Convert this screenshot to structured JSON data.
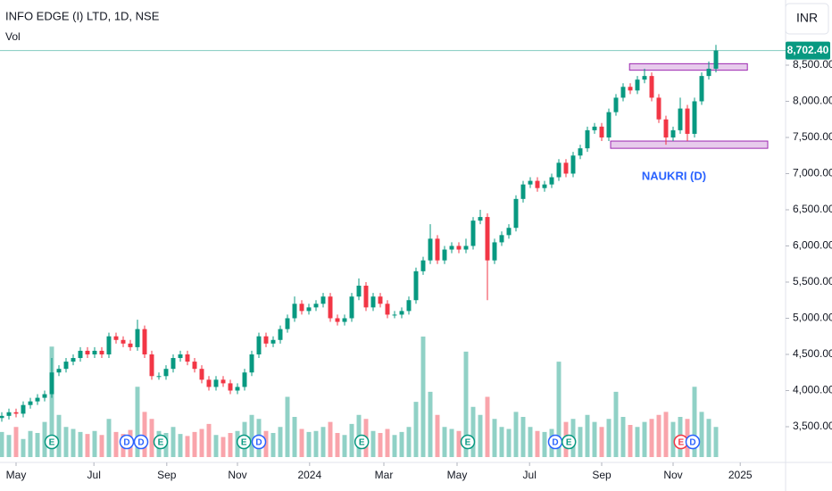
{
  "header": {
    "symbol": "INFO EDGE (I) LTD, 1D, NSE",
    "volume_label": "Vol",
    "currency": "INR"
  },
  "chart_data": {
    "type": "candlestick",
    "open": [
      3620,
      3650,
      3700,
      3680,
      3800,
      3850,
      3900,
      3950,
      4250,
      4300,
      4400,
      4450,
      4550,
      4500,
      4550,
      4500,
      4750,
      4700,
      4650,
      4600,
      4850,
      4500,
      4200,
      4200,
      4300,
      4450,
      4500,
      4400,
      4300,
      4150,
      4050,
      4150,
      4100,
      4000,
      4050,
      4250,
      4500,
      4750,
      4650,
      4700,
      4850,
      5000,
      5200,
      5100,
      5150,
      5200,
      5300,
      5000,
      4950,
      5000,
      5300,
      5450,
      5150,
      5300,
      5200,
      5050,
      5050,
      5100,
      5250,
      5650,
      5800,
      6100,
      5800,
      5950,
      6000,
      5950,
      6000,
      6350,
      6400,
      5800,
      6050,
      6150,
      6250,
      6650,
      6850,
      6900,
      6800,
      6850,
      6950,
      7150,
      7000,
      7250,
      7350,
      7600,
      7650,
      7500,
      7850,
      8050,
      8200,
      8150,
      8300,
      8350,
      8050,
      7750,
      7500,
      7600,
      7900,
      7550,
      8000,
      8350,
      8450
    ],
    "high": [
      3700,
      3750,
      3750,
      3850,
      3900,
      3950,
      4000,
      4450,
      4350,
      4450,
      4500,
      4600,
      4600,
      4600,
      4600,
      4800,
      4800,
      4750,
      4700,
      4980,
      4900,
      4550,
      4250,
      4350,
      4500,
      4550,
      4550,
      4450,
      4350,
      4200,
      4200,
      4200,
      4150,
      4100,
      4300,
      4550,
      4800,
      4800,
      4750,
      4900,
      5050,
      5300,
      5250,
      5200,
      5250,
      5350,
      5350,
      5050,
      5050,
      5350,
      5550,
      5500,
      5350,
      5350,
      5250,
      5100,
      5150,
      5300,
      5700,
      5850,
      6300,
      6150,
      6000,
      6050,
      6050,
      6100,
      6400,
      6500,
      6450,
      6100,
      6200,
      6300,
      6700,
      6900,
      6950,
      6950,
      6900,
      7000,
      7200,
      7200,
      7300,
      7400,
      7650,
      7700,
      7700,
      7900,
      8100,
      8250,
      8250,
      8350,
      8450,
      8400,
      8100,
      7800,
      7650,
      8050,
      7950,
      8050,
      8400,
      8550,
      8780
    ],
    "low": [
      3570,
      3600,
      3630,
      3630,
      3750,
      3800,
      3850,
      3900,
      4200,
      4250,
      4350,
      4400,
      4450,
      4450,
      4450,
      4450,
      4650,
      4600,
      4550,
      4550,
      4450,
      4150,
      4150,
      4150,
      4250,
      4400,
      4350,
      4250,
      4100,
      4000,
      4000,
      4050,
      3950,
      3950,
      4000,
      4200,
      4450,
      4600,
      4600,
      4650,
      4800,
      4950,
      5050,
      5050,
      5100,
      5150,
      4950,
      4900,
      4900,
      4950,
      5250,
      5100,
      5100,
      5150,
      5000,
      5000,
      5000,
      5050,
      5200,
      5600,
      5750,
      5750,
      5750,
      5900,
      5900,
      5900,
      5950,
      6300,
      5250,
      5750,
      6000,
      6100,
      6200,
      6600,
      6800,
      6750,
      6750,
      6800,
      6900,
      6950,
      6950,
      7200,
      7300,
      7550,
      7450,
      7450,
      7800,
      8000,
      8100,
      8100,
      8250,
      8000,
      7700,
      7400,
      7450,
      7550,
      7450,
      7500,
      7950,
      8300,
      8400
    ],
    "close": [
      3650,
      3700,
      3680,
      3800,
      3850,
      3900,
      3950,
      4250,
      4300,
      4400,
      4450,
      4550,
      4500,
      4550,
      4500,
      4750,
      4700,
      4650,
      4600,
      4850,
      4500,
      4200,
      4200,
      4300,
      4450,
      4500,
      4400,
      4300,
      4150,
      4050,
      4150,
      4100,
      4000,
      4050,
      4250,
      4500,
      4750,
      4650,
      4700,
      4850,
      5000,
      5200,
      5100,
      5150,
      5200,
      5300,
      5000,
      4950,
      5000,
      5300,
      5450,
      5150,
      5300,
      5200,
      5050,
      5050,
      5100,
      5250,
      5650,
      5800,
      6100,
      5800,
      5950,
      6000,
      5950,
      6000,
      6350,
      6400,
      5800,
      6050,
      6150,
      6250,
      6650,
      6850,
      6900,
      6800,
      6850,
      6950,
      7150,
      7000,
      7250,
      7350,
      7600,
      7650,
      7500,
      7850,
      8050,
      8200,
      8150,
      8300,
      8350,
      8050,
      7750,
      7500,
      7600,
      7900,
      7550,
      8000,
      8350,
      8450,
      8702.4
    ],
    "volume": [
      250000,
      220000,
      300000,
      180000,
      260000,
      240000,
      350000,
      1100000,
      420000,
      300000,
      280000,
      250000,
      230000,
      260000,
      220000,
      380000,
      250000,
      230000,
      270000,
      700000,
      450000,
      380000,
      260000,
      240000,
      300000,
      230000,
      210000,
      250000,
      280000,
      330000,
      220000,
      200000,
      240000,
      260000,
      350000,
      420000,
      380000,
      260000,
      240000,
      300000,
      600000,
      400000,
      280000,
      250000,
      260000,
      300000,
      350000,
      240000,
      220000,
      330000,
      420000,
      380000,
      260000,
      240000,
      280000,
      220000,
      250000,
      300000,
      550000,
      1200000,
      650000,
      420000,
      300000,
      280000,
      260000,
      1050000,
      500000,
      420000,
      600000,
      380000,
      300000,
      280000,
      450000,
      400000,
      300000,
      260000,
      250000,
      280000,
      950000,
      350000,
      380000,
      300000,
      420000,
      350000,
      300000,
      380000,
      650000,
      400000,
      320000,
      300000,
      350000,
      380000,
      420000,
      450000,
      350000,
      400000,
      380000,
      700000,
      450000,
      380000,
      300000
    ],
    "up_color": "#089981",
    "down_color": "#f23645",
    "xlim": [
      -0.25,
      109.75
    ],
    "xticks": [
      {
        "value": 2,
        "label": "May"
      },
      {
        "value": 12.9,
        "label": "Jul"
      },
      {
        "value": 23.1,
        "label": "Sep"
      },
      {
        "value": 33,
        "label": "Nov"
      },
      {
        "value": 43.1,
        "label": "2024"
      },
      {
        "value": 53.5,
        "label": "Mar"
      },
      {
        "value": 63.75,
        "label": "May"
      },
      {
        "value": 73.9,
        "label": "Jul"
      },
      {
        "value": 84,
        "label": "Sep"
      },
      {
        "value": 94,
        "label": "Nov"
      },
      {
        "value": 103.4,
        "label": "2025"
      }
    ],
    "ylim": [
      3006,
      9401
    ],
    "yticks": [
      {
        "value": 3500,
        "label": "3,500.00"
      },
      {
        "value": 4000,
        "label": "4,000.00"
      },
      {
        "value": 4500,
        "label": "4,500.00"
      },
      {
        "value": 5000,
        "label": "5,000.00"
      },
      {
        "value": 5500,
        "label": "5,500.00"
      },
      {
        "value": 6000,
        "label": "6,000.00"
      },
      {
        "value": 6500,
        "label": "6,500.00"
      },
      {
        "value": 7000,
        "label": "7,000.00"
      },
      {
        "value": 7500,
        "label": "7,500.00"
      },
      {
        "value": 8000,
        "label": "8,000.00"
      },
      {
        "value": 8500,
        "label": "8,500.00"
      }
    ],
    "last_price_label": "8,702.40",
    "events": [
      {
        "label": "E",
        "index": 7,
        "color": "#089981"
      },
      {
        "label": "D",
        "index": 17.5,
        "color": "#2962ff"
      },
      {
        "label": "D",
        "index": 19.5,
        "color": "#2962ff"
      },
      {
        "label": "E",
        "index": 22.25,
        "color": "#089981"
      },
      {
        "label": "E",
        "index": 33.9,
        "color": "#089981"
      },
      {
        "label": "D",
        "index": 36,
        "color": "#2962ff"
      },
      {
        "label": "E",
        "index": 50.4,
        "color": "#089981"
      },
      {
        "label": "E",
        "index": 65.25,
        "color": "#089981"
      },
      {
        "label": "D",
        "index": 77.5,
        "color": "#2962ff"
      },
      {
        "label": "E",
        "index": 79.4,
        "color": "#089981"
      },
      {
        "label": "E",
        "index": 95.1,
        "color": "#f23645"
      },
      {
        "label": "D",
        "index": 96.75,
        "color": "#2962ff"
      }
    ],
    "zones": [
      {
        "x": [
          87.9,
          104.4
        ],
        "y": [
          8430,
          8520
        ],
        "color": "#e1bee7"
      },
      {
        "x": [
          85.25,
          107.25
        ],
        "y": [
          7350,
          7450
        ],
        "color": "#e1bee7"
      }
    ],
    "annotation": "NAUKRI (D)"
  }
}
